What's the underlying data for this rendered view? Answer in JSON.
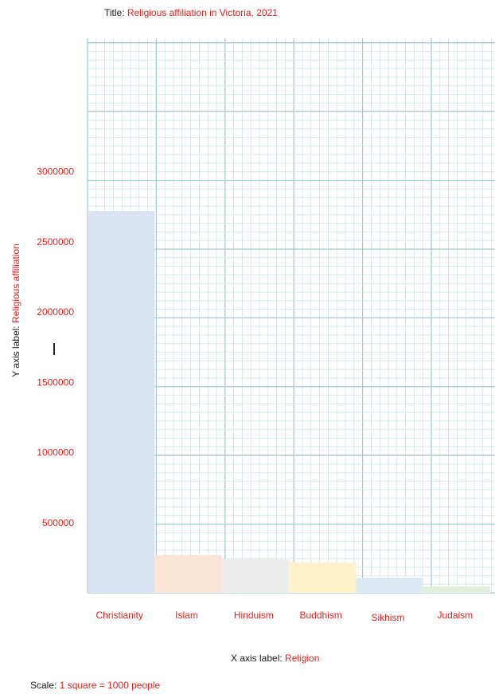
{
  "header": {
    "title_prefix": "Title: ",
    "title": "Religious affiliation in Victoria, 2021"
  },
  "axis_labels": {
    "x_prefix": "X axis label: ",
    "x": "Religion",
    "y_prefix": "Y axis label: ",
    "y": "Religious affiliation"
  },
  "scale": {
    "prefix": "Scale: ",
    "text": "1 square = 1000 people"
  },
  "colors": {
    "accent_text": "#e0201b",
    "grid_minor": "#cfe3ea",
    "grid_major": "#a9c9d3",
    "bars": [
      "#dae3f3",
      "#fbe5d6",
      "#ededed",
      "#fff2cc",
      "#deebf7",
      "#e2efda"
    ]
  },
  "chart_data": {
    "type": "bar",
    "title": "Religious affiliation in Victoria, 2021",
    "xlabel": "Religion",
    "ylabel": "Religious affiliation",
    "categories": [
      "Christianity",
      "Islam",
      "Hinduism",
      "Buddhism",
      "Sikhism",
      "Judaism"
    ],
    "values": [
      2720000,
      270000,
      240000,
      218000,
      108000,
      46000
    ],
    "yticks": [
      500000,
      1000000,
      1500000,
      2000000,
      2500000,
      3000000
    ],
    "ytick_labels": [
      "500000",
      "1000000",
      "1500000",
      "2000000",
      "2500000",
      "3000000"
    ],
    "ylim": [
      0,
      3950000
    ],
    "grid": true,
    "legend": "none"
  }
}
